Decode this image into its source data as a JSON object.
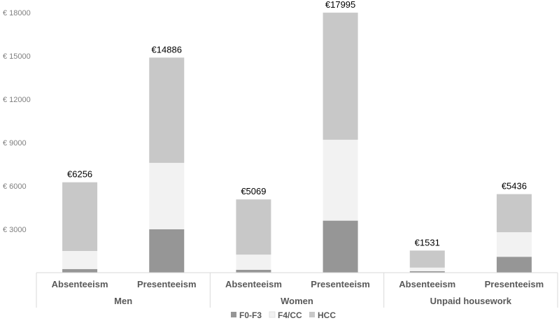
{
  "chart_data": {
    "type": "bar",
    "stacked": true,
    "title": "",
    "xlabel": "",
    "ylabel": "",
    "ylim": [
      0,
      18000
    ],
    "yticks": [
      {
        "value": 3000,
        "label": "€ 3000"
      },
      {
        "value": 6000,
        "label": "€ 6000"
      },
      {
        "value": 9000,
        "label": "€ 9000"
      },
      {
        "value": 12000,
        "label": "€ 12000"
      },
      {
        "value": 15000,
        "label": "€ 15000"
      },
      {
        "value": 18000,
        "label": "€ 18000"
      }
    ],
    "grid": false,
    "groups": [
      "Men",
      "Women",
      "Unpaid housework"
    ],
    "categories": [
      "Absenteeism",
      "Presenteeism",
      "Absenteeism",
      "Presenteeism",
      "Absenteeism",
      "Presenteeism"
    ],
    "group_index": [
      0,
      0,
      1,
      1,
      2,
      2
    ],
    "series": [
      {
        "name": "F0-F3",
        "color": "#969696",
        "values": [
          250,
          3000,
          200,
          3600,
          100,
          1100
        ]
      },
      {
        "name": "F4/CC",
        "color": "#f2f2f2",
        "values": [
          1250,
          4600,
          1050,
          5600,
          250,
          1700
        ]
      },
      {
        "name": "HCC",
        "color": "#c8c8c8",
        "values": [
          4756,
          7286,
          3819,
          8795,
          1181,
          2636
        ]
      }
    ],
    "data_labels": [
      "€6256",
      "€14886",
      "€5069",
      "€17995",
      "€1531",
      "€5436"
    ],
    "legend_position": "bottom"
  }
}
